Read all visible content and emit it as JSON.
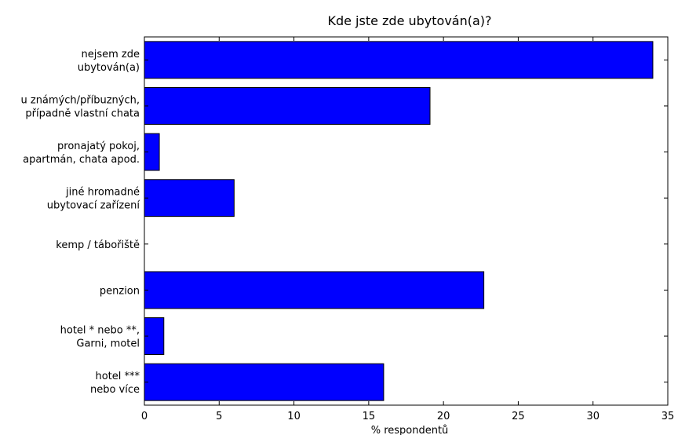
{
  "chart_data": {
    "type": "bar",
    "orientation": "horizontal",
    "title": "Kde jste zde ubytován(a)?",
    "xlabel": "% respondentů",
    "ylabel": "",
    "xlim": [
      0,
      35
    ],
    "xticks": [
      0,
      5,
      10,
      15,
      20,
      25,
      30,
      35
    ],
    "categories": [
      [
        "nejsem zde",
        "ubytován(a)"
      ],
      [
        "u známých/příbuzných,",
        "případně vlastní chata"
      ],
      [
        "pronajatý pokoj,",
        "apartmán, chata apod."
      ],
      [
        "jiné hromadné",
        "ubytovací zařízení"
      ],
      [
        "kemp / tábořiště"
      ],
      [
        "penzion"
      ],
      [
        "hotel * nebo **,",
        "Garni, motel"
      ],
      [
        "hotel ***",
        "nebo více"
      ]
    ],
    "values": [
      34.0,
      19.1,
      1.0,
      6.0,
      0.0,
      22.7,
      1.3,
      16.0
    ],
    "grid": false,
    "bar_color": "#0000ff",
    "bar_edge_color": "#000000"
  }
}
